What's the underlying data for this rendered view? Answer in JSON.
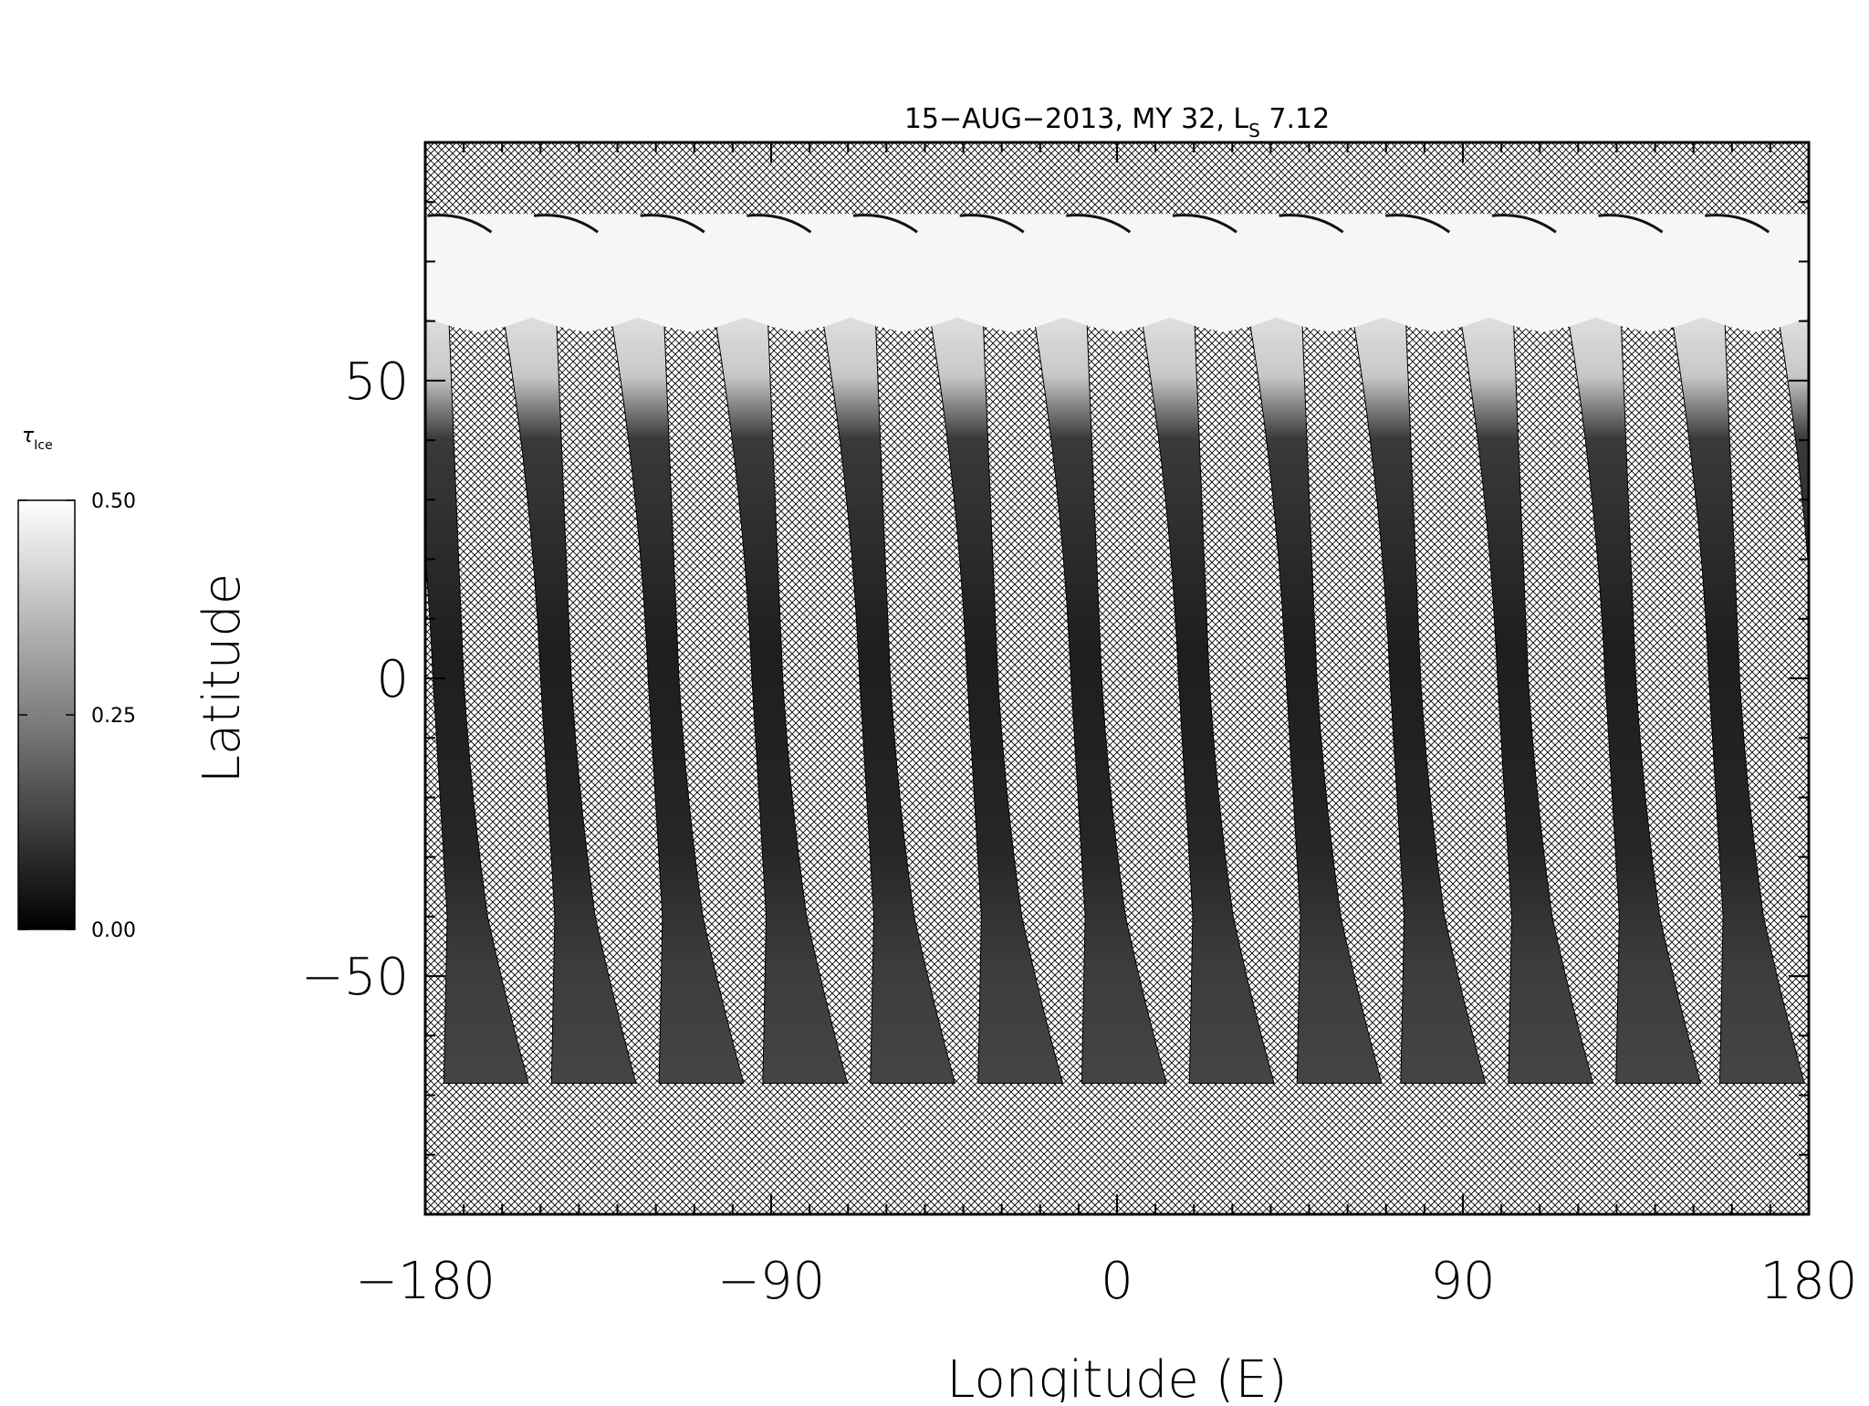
{
  "chart_data": {
    "type": "heatmap",
    "title": {
      "prefix": "15−AUG−2013, MY 32,  L",
      "subscript": "S",
      "suffix": " 7.12"
    },
    "xlabel": "Longitude (E)",
    "ylabel": "Latitude",
    "xlim": [
      -180,
      180
    ],
    "ylim": [
      -90,
      90
    ],
    "x_major_ticks": [
      -180,
      -90,
      0,
      90,
      180
    ],
    "x_tick_labels": [
      "−180",
      "−90",
      "0",
      "90",
      "180"
    ],
    "y_major_ticks": [
      -50,
      0,
      50
    ],
    "y_tick_labels": [
      "−50",
      "0",
      "50"
    ],
    "x_minor_step": 10,
    "y_minor_step": 10,
    "missing_data": "cross-hatched",
    "colorbar": {
      "symbol": "τ",
      "subscript": "Ice",
      "min": 0.0,
      "max": 0.5,
      "ticks": [
        0.0,
        0.25,
        0.5
      ],
      "tick_labels": [
        "0.00",
        "0.25",
        "0.50"
      ],
      "color_low": "#000000",
      "color_high": "#ffffff"
    },
    "polar_cap_edge_lat": 60,
    "swaths_north_lat": 78,
    "swaths_south_lat": -68,
    "swath_count": 13,
    "swath_spacing_deg": 27.7,
    "swath_width_deg_equator": 8,
    "swath_lon_at_equator": [
      -174,
      -146,
      -118,
      -91,
      -63,
      -35,
      -8,
      20,
      48,
      75,
      103,
      131,
      158
    ]
  },
  "colors": {
    "background": "#ffffff",
    "hatch": "#000000",
    "axis": "#000000"
  }
}
